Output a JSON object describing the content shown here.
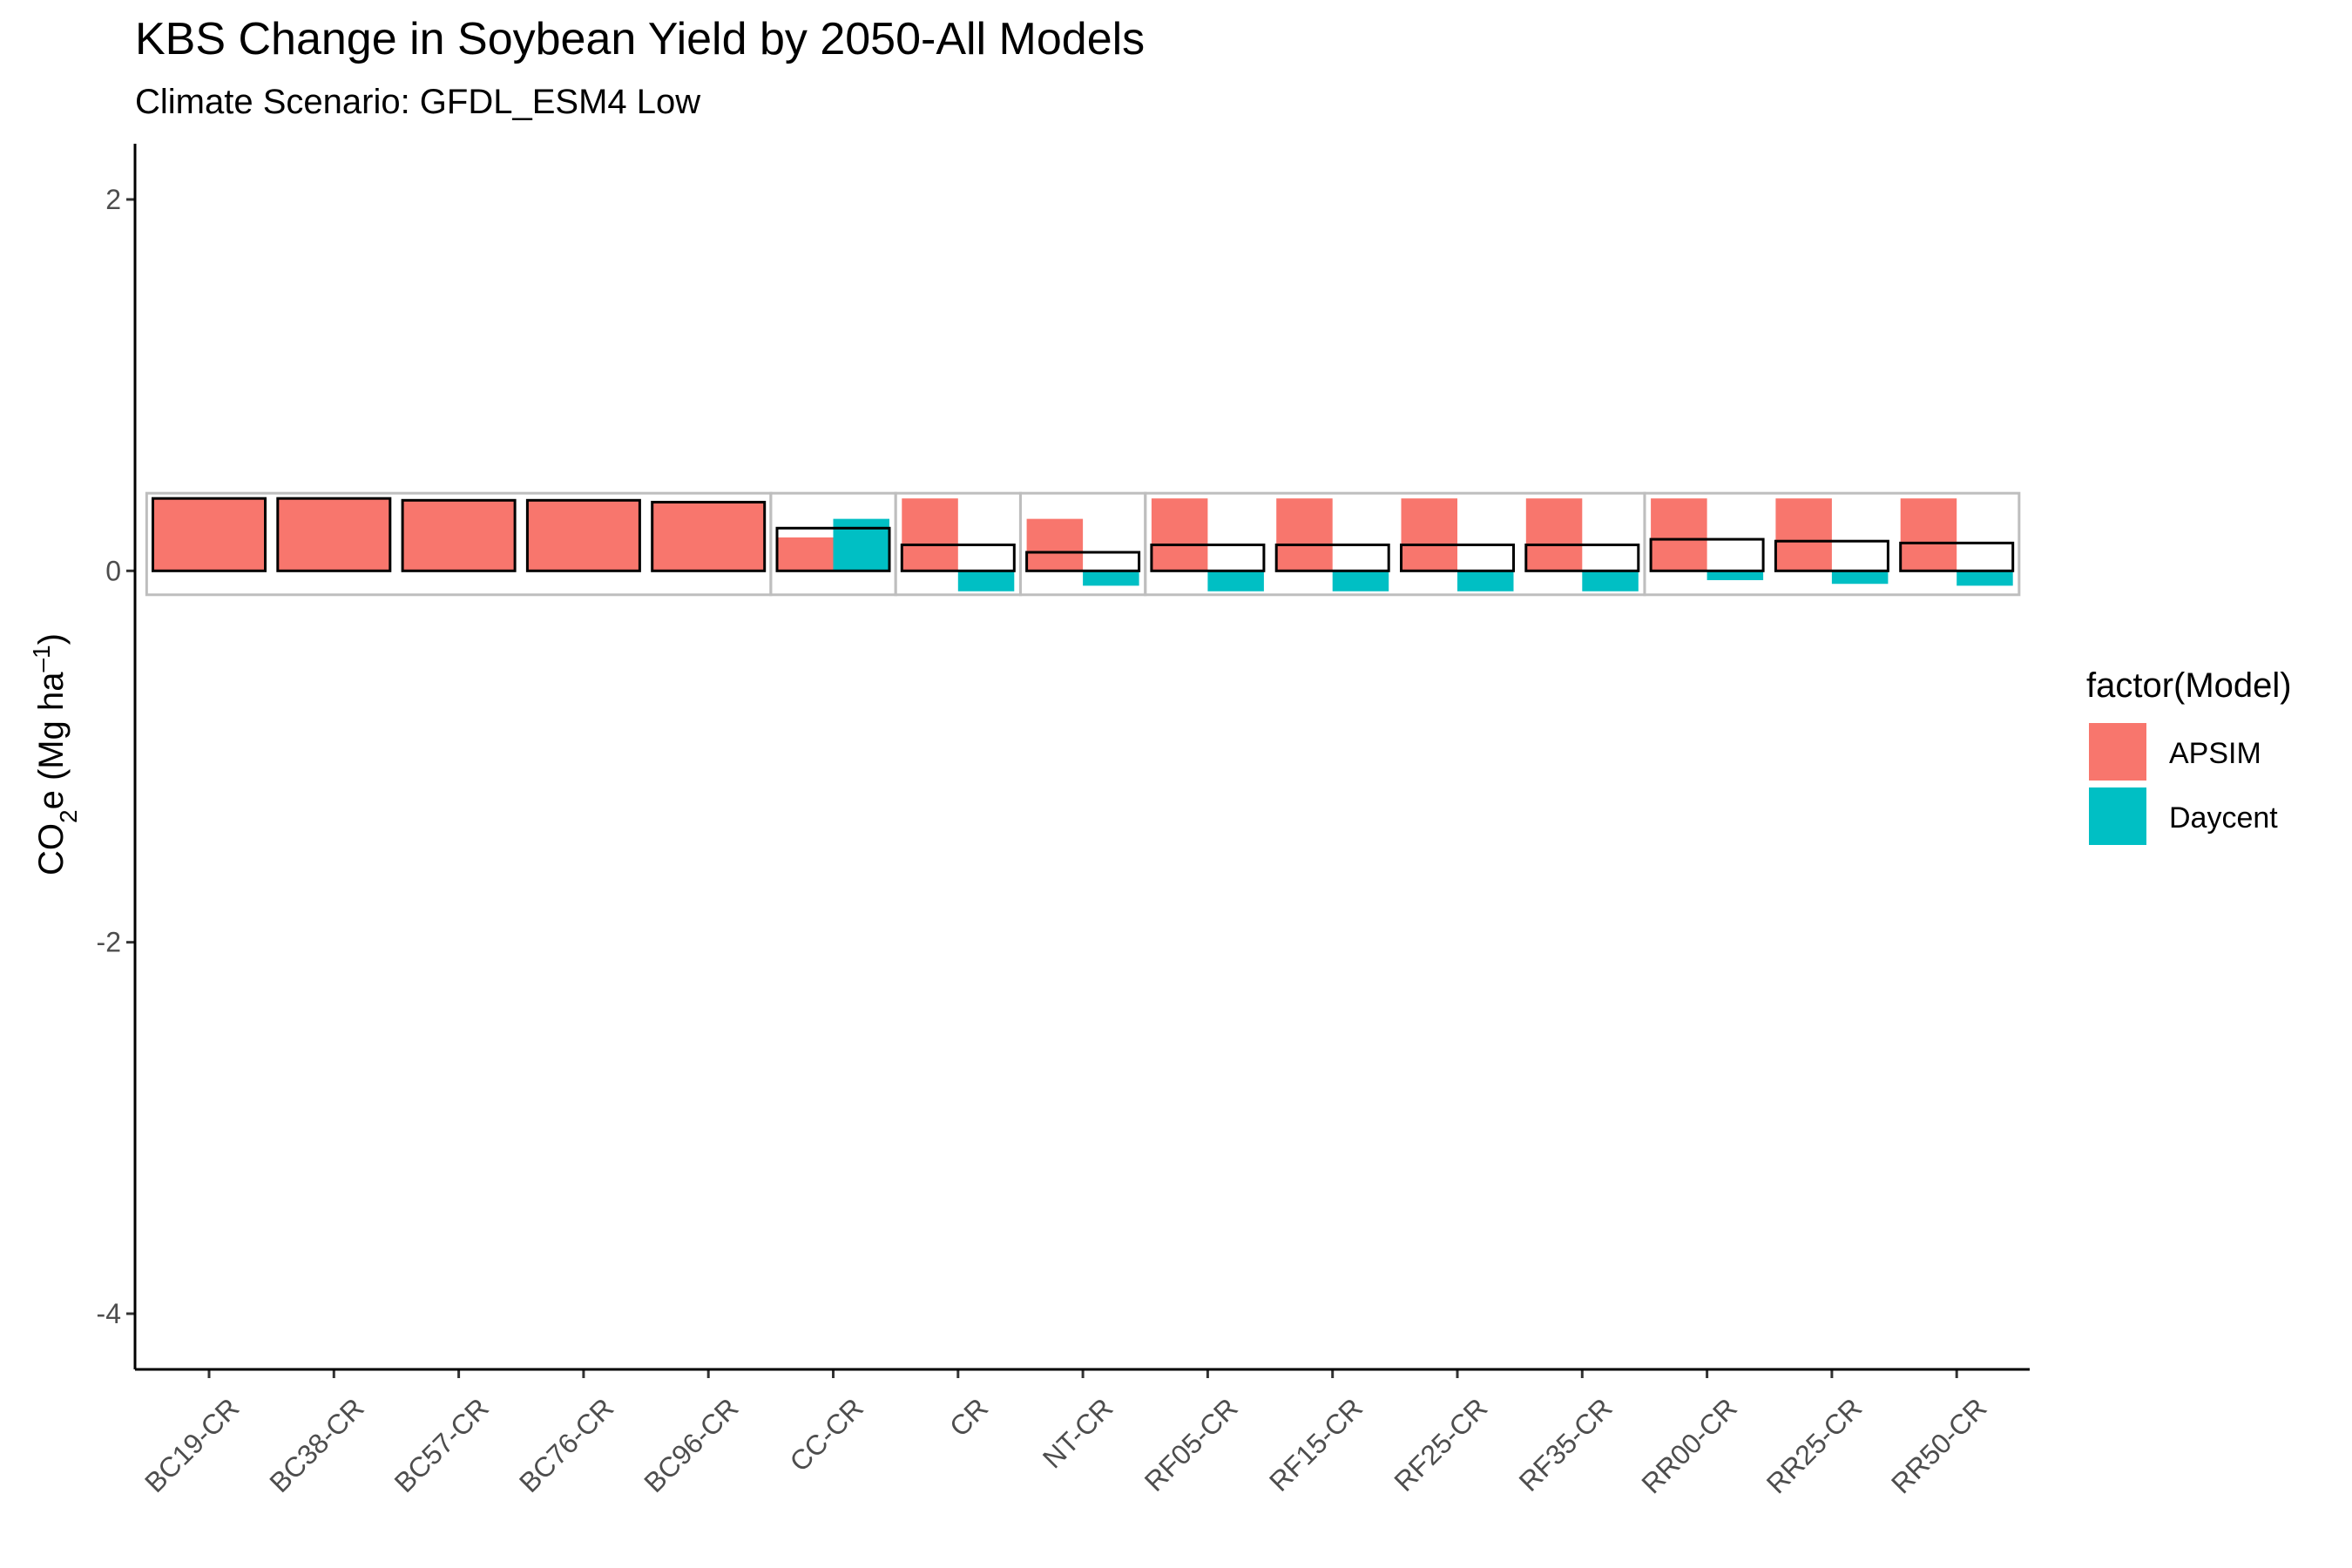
{
  "chart_data": {
    "type": "bar",
    "title": "KBS Change in Soybean Yield by 2050-All Models",
    "subtitle": "Climate Scenario: GFDL_ESM4 Low",
    "xlabel": "",
    "ylabel": {
      "main": "CO",
      "sub": "2",
      "rest": "e (Mg ha",
      "sup": "–1",
      "close": ")"
    },
    "ylim": [
      -4.3,
      2.3
    ],
    "yticks": [
      2,
      0,
      -2,
      -4
    ],
    "categories": [
      "BC19-CR",
      "BC38-CR",
      "BC57-CR",
      "BC76-CR",
      "BC96-CR",
      "CC-CR",
      "CR",
      "NT-CR",
      "RF05-CR",
      "RF15-CR",
      "RF25-CR",
      "RF35-CR",
      "RR00-CR",
      "RR25-CR",
      "RR50-CR"
    ],
    "series": [
      {
        "name": "APSIM",
        "color": "#F8766D",
        "values": [
          0.39,
          0.39,
          0.38,
          0.38,
          0.37,
          0.18,
          0.39,
          0.28,
          0.39,
          0.39,
          0.39,
          0.39,
          0.39,
          0.39,
          0.39
        ]
      },
      {
        "name": "Daycent",
        "color": "#00BFC4",
        "values": [
          null,
          null,
          null,
          null,
          null,
          0.28,
          -0.11,
          -0.08,
          -0.11,
          -0.11,
          -0.11,
          -0.11,
          -0.05,
          -0.07,
          -0.08
        ]
      }
    ],
    "mean_outline": [
      0.39,
      0.39,
      0.38,
      0.38,
      0.37,
      0.23,
      0.14,
      0.1,
      0.14,
      0.14,
      0.14,
      0.14,
      0.17,
      0.16,
      0.15
    ],
    "group_boxes": [
      [
        0,
        4
      ],
      [
        5,
        5
      ],
      [
        6,
        6
      ],
      [
        7,
        7
      ],
      [
        8,
        11
      ],
      [
        12,
        14
      ]
    ],
    "legend": {
      "title": "factor(Model)",
      "position": "right",
      "items": [
        {
          "label": "APSIM",
          "color": "#F8766D"
        },
        {
          "label": "Daycent",
          "color": "#00BFC4"
        }
      ]
    },
    "grid": false
  }
}
